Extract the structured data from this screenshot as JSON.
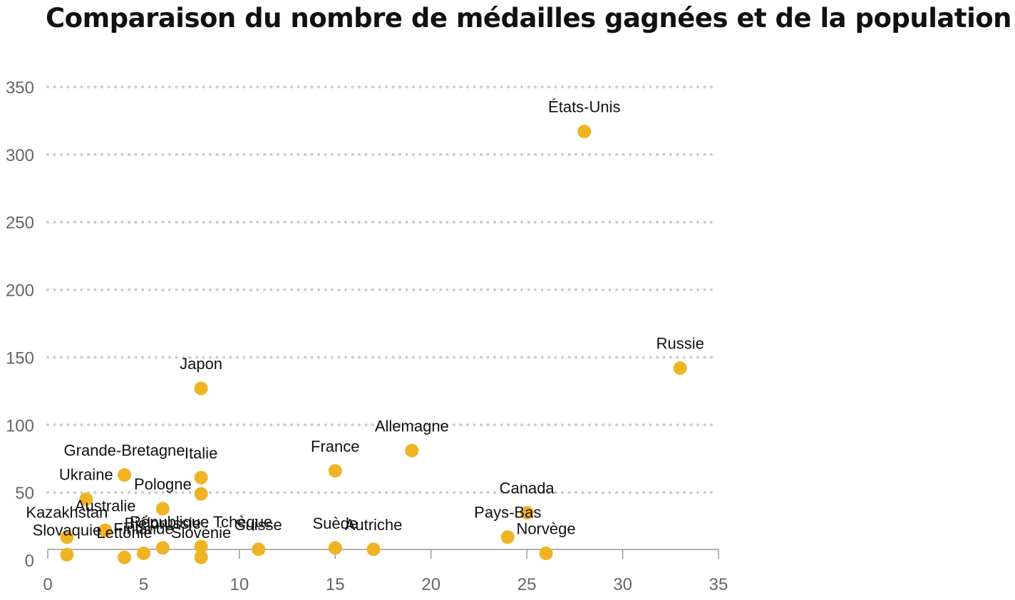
{
  "chart_data": {
    "type": "scatter",
    "title": "Comparaison du nombre de médailles gagnées et de la population",
    "xlabel": "",
    "ylabel": "",
    "xlim": [
      0,
      35
    ],
    "ylim": [
      0,
      350
    ],
    "x_ticks": [
      0,
      5,
      10,
      15,
      20,
      25,
      30,
      35
    ],
    "y_ticks": [
      0,
      50,
      100,
      150,
      200,
      250,
      300,
      350
    ],
    "grid": "horizontal dotted",
    "point_color": "#F0B323",
    "grid_color": "#cccccc",
    "points": [
      {
        "label": "États-Unis",
        "x": 28,
        "y": 317
      },
      {
        "label": "Russie",
        "x": 33,
        "y": 142
      },
      {
        "label": "Japon",
        "x": 8,
        "y": 127
      },
      {
        "label": "Allemagne",
        "x": 19,
        "y": 81
      },
      {
        "label": "France",
        "x": 15,
        "y": 66
      },
      {
        "label": "Grande-Bretagne",
        "x": 4,
        "y": 63
      },
      {
        "label": "Italie",
        "x": 8,
        "y": 61
      },
      {
        "label": "Ukraine",
        "x": 2,
        "y": 45
      },
      {
        "label": "Pologne",
        "x": 6,
        "y": 38
      },
      {
        "label": "Canada",
        "x": 25,
        "y": 35
      },
      {
        "label": "Australie",
        "x": 3,
        "y": 22
      },
      {
        "label": "Kazakhstan",
        "x": 1,
        "y": 17
      },
      {
        "label": "Pays-Bas",
        "x": 24,
        "y": 17
      },
      {
        "label": "République Tchèque",
        "x": 8,
        "y": 10
      },
      {
        "label": "Biélorussie",
        "x": 6,
        "y": 9
      },
      {
        "label": "Suède",
        "x": 15,
        "y": 9
      },
      {
        "label": "Suisse",
        "x": 11,
        "y": 8
      },
      {
        "label": "Autriche",
        "x": 17,
        "y": 8
      },
      {
        "label": "Finlande",
        "x": 5,
        "y": 5
      },
      {
        "label": "Norvège",
        "x": 26,
        "y": 5
      },
      {
        "label": "Slovaquie",
        "x": 1,
        "y": 4
      },
      {
        "label": "Lettonie",
        "x": 4,
        "y": 2
      },
      {
        "label": "Slovénie",
        "x": 8,
        "y": 2
      },
      {
        "label": "",
        "x": 8,
        "y": 49
      }
    ]
  }
}
